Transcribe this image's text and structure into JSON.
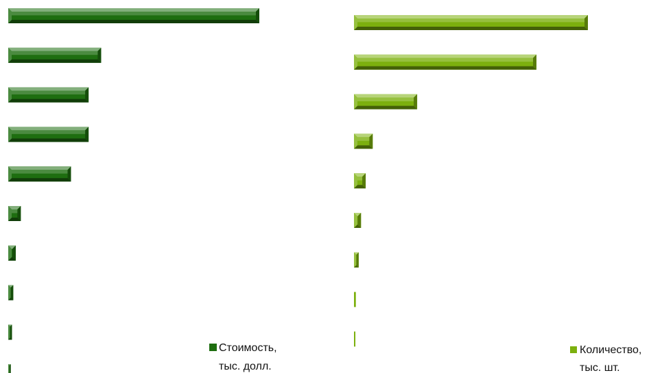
{
  "chart_data": [
    {
      "type": "bar",
      "orientation": "horizontal",
      "series": [
        {
          "name_lines": [
            "Стоимость,",
            "тыс. долл."
          ],
          "color": "#1e6e10",
          "values": [
            100,
            37,
            32,
            32,
            25,
            5,
            3,
            2,
            1.5,
            1
          ]
        }
      ],
      "xlim": [
        0,
        100
      ],
      "legend": "bottom-right"
    },
    {
      "type": "bar",
      "orientation": "horizontal",
      "series": [
        {
          "name_lines": [
            "Количество,",
            "тыс. шт."
          ],
          "color": "#7cb00e",
          "values": [
            100,
            78,
            27,
            8,
            5,
            3,
            2,
            0.8,
            0.6
          ]
        }
      ],
      "xlim": [
        0,
        100
      ],
      "legend": "bottom-right"
    }
  ]
}
